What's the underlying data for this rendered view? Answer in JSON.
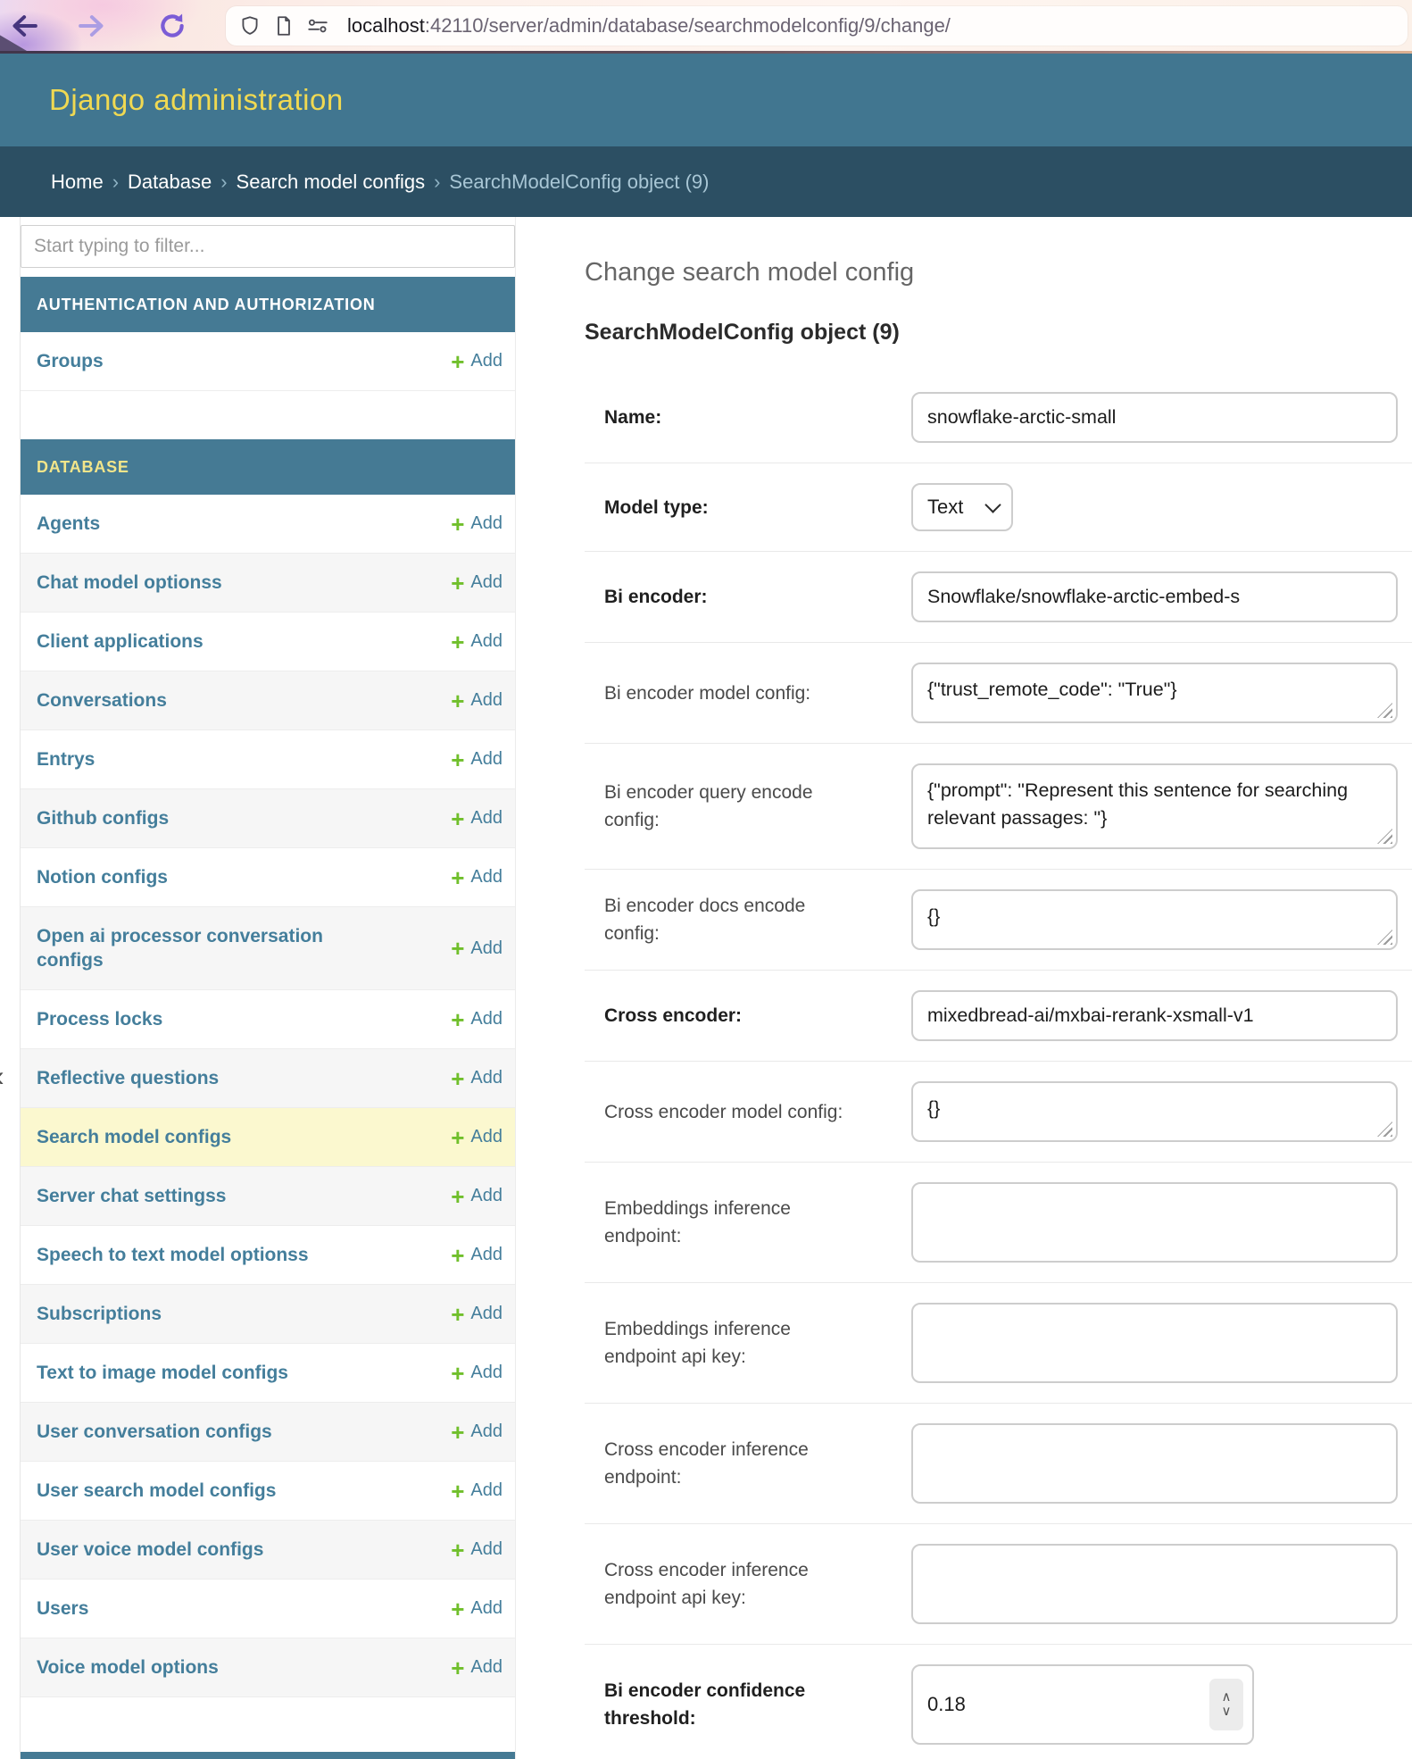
{
  "browser": {
    "url_host": "localhost",
    "url_rest": ":42110/server/admin/database/searchmodelconfig/9/change/"
  },
  "header": {
    "site_title": "Django administration"
  },
  "breadcrumbs": {
    "separator": "›",
    "items": [
      "Home",
      "Database",
      "Search model configs"
    ],
    "current": "SearchModelConfig object (9)"
  },
  "sidebar": {
    "filter_placeholder": "Start typing to filter...",
    "toggle_glyph": "‹",
    "add_label": "Add",
    "add_plus_glyph": "+",
    "sections": [
      {
        "title": "AUTHENTICATION AND AUTHORIZATION",
        "current": false,
        "items": [
          {
            "label": "Groups"
          }
        ]
      },
      {
        "title": "DATABASE",
        "current": true,
        "items": [
          {
            "label": "Agents"
          },
          {
            "label": "Chat model optionss"
          },
          {
            "label": "Client applications"
          },
          {
            "label": "Conversations"
          },
          {
            "label": "Entrys"
          },
          {
            "label": "Github configs"
          },
          {
            "label": "Notion configs"
          },
          {
            "label": "Open ai processor conversation configs"
          },
          {
            "label": "Process locks"
          },
          {
            "label": "Reflective questions"
          },
          {
            "label": "Search model configs",
            "selected": true
          },
          {
            "label": "Server chat settingss"
          },
          {
            "label": "Speech to text model optionss"
          },
          {
            "label": "Subscriptions"
          },
          {
            "label": "Text to image model configs"
          },
          {
            "label": "User conversation configs"
          },
          {
            "label": "User search model configs"
          },
          {
            "label": "User voice model configs"
          },
          {
            "label": "Users"
          },
          {
            "label": "Voice model options"
          }
        ]
      }
    ]
  },
  "main": {
    "page_title": "Change search model config",
    "object_title": "SearchModelConfig object (9)",
    "stepper_up_glyph": "∧",
    "stepper_down_glyph": "∨",
    "fields": [
      {
        "label": "Name:",
        "type": "text",
        "value": "snowflake-arctic-small",
        "required": true
      },
      {
        "label": "Model type:",
        "type": "select",
        "value": "Text",
        "required": true
      },
      {
        "label": "Bi encoder:",
        "type": "text",
        "value": "Snowflake/snowflake-arctic-embed-s",
        "required": true
      },
      {
        "label": "Bi encoder model config:",
        "type": "textarea",
        "lines": 1,
        "value": "{\"trust_remote_code\": \"True\"}"
      },
      {
        "label": "Bi encoder query encode config:",
        "type": "textarea",
        "lines": 2,
        "value": "{\"prompt\": \"Represent this sentence for searching relevant passages: \"}"
      },
      {
        "label": "Bi encoder docs encode config:",
        "type": "textarea",
        "lines": 1,
        "value": "{}"
      },
      {
        "label": "Cross encoder:",
        "type": "text",
        "value": "mixedbread-ai/mxbai-rerank-xsmall-v1",
        "required": true
      },
      {
        "label": "Cross encoder model config:",
        "type": "textarea",
        "lines": 1,
        "value": "{}"
      },
      {
        "label": "Embeddings inference endpoint:",
        "type": "bigtext",
        "value": ""
      },
      {
        "label": "Embeddings inference endpoint api key:",
        "type": "bigtext",
        "value": ""
      },
      {
        "label": "Cross encoder inference endpoint:",
        "type": "bigtext",
        "value": ""
      },
      {
        "label": "Cross encoder inference endpoint api key:",
        "type": "bigtext",
        "value": ""
      },
      {
        "label": "Bi encoder confidence threshold:",
        "type": "number",
        "value": "0.18",
        "required": true
      }
    ]
  },
  "colors": {
    "header_bg": "#417690",
    "breadcrumbs_bg": "#2c4f63",
    "module_header_bg": "#457a94",
    "accent_yellow": "#f0d952",
    "current_app_yellow": "#f2e58a",
    "link_blue": "#447e9b",
    "add_green": "#70bf2b",
    "selected_row_bg": "#fbf8cf"
  }
}
